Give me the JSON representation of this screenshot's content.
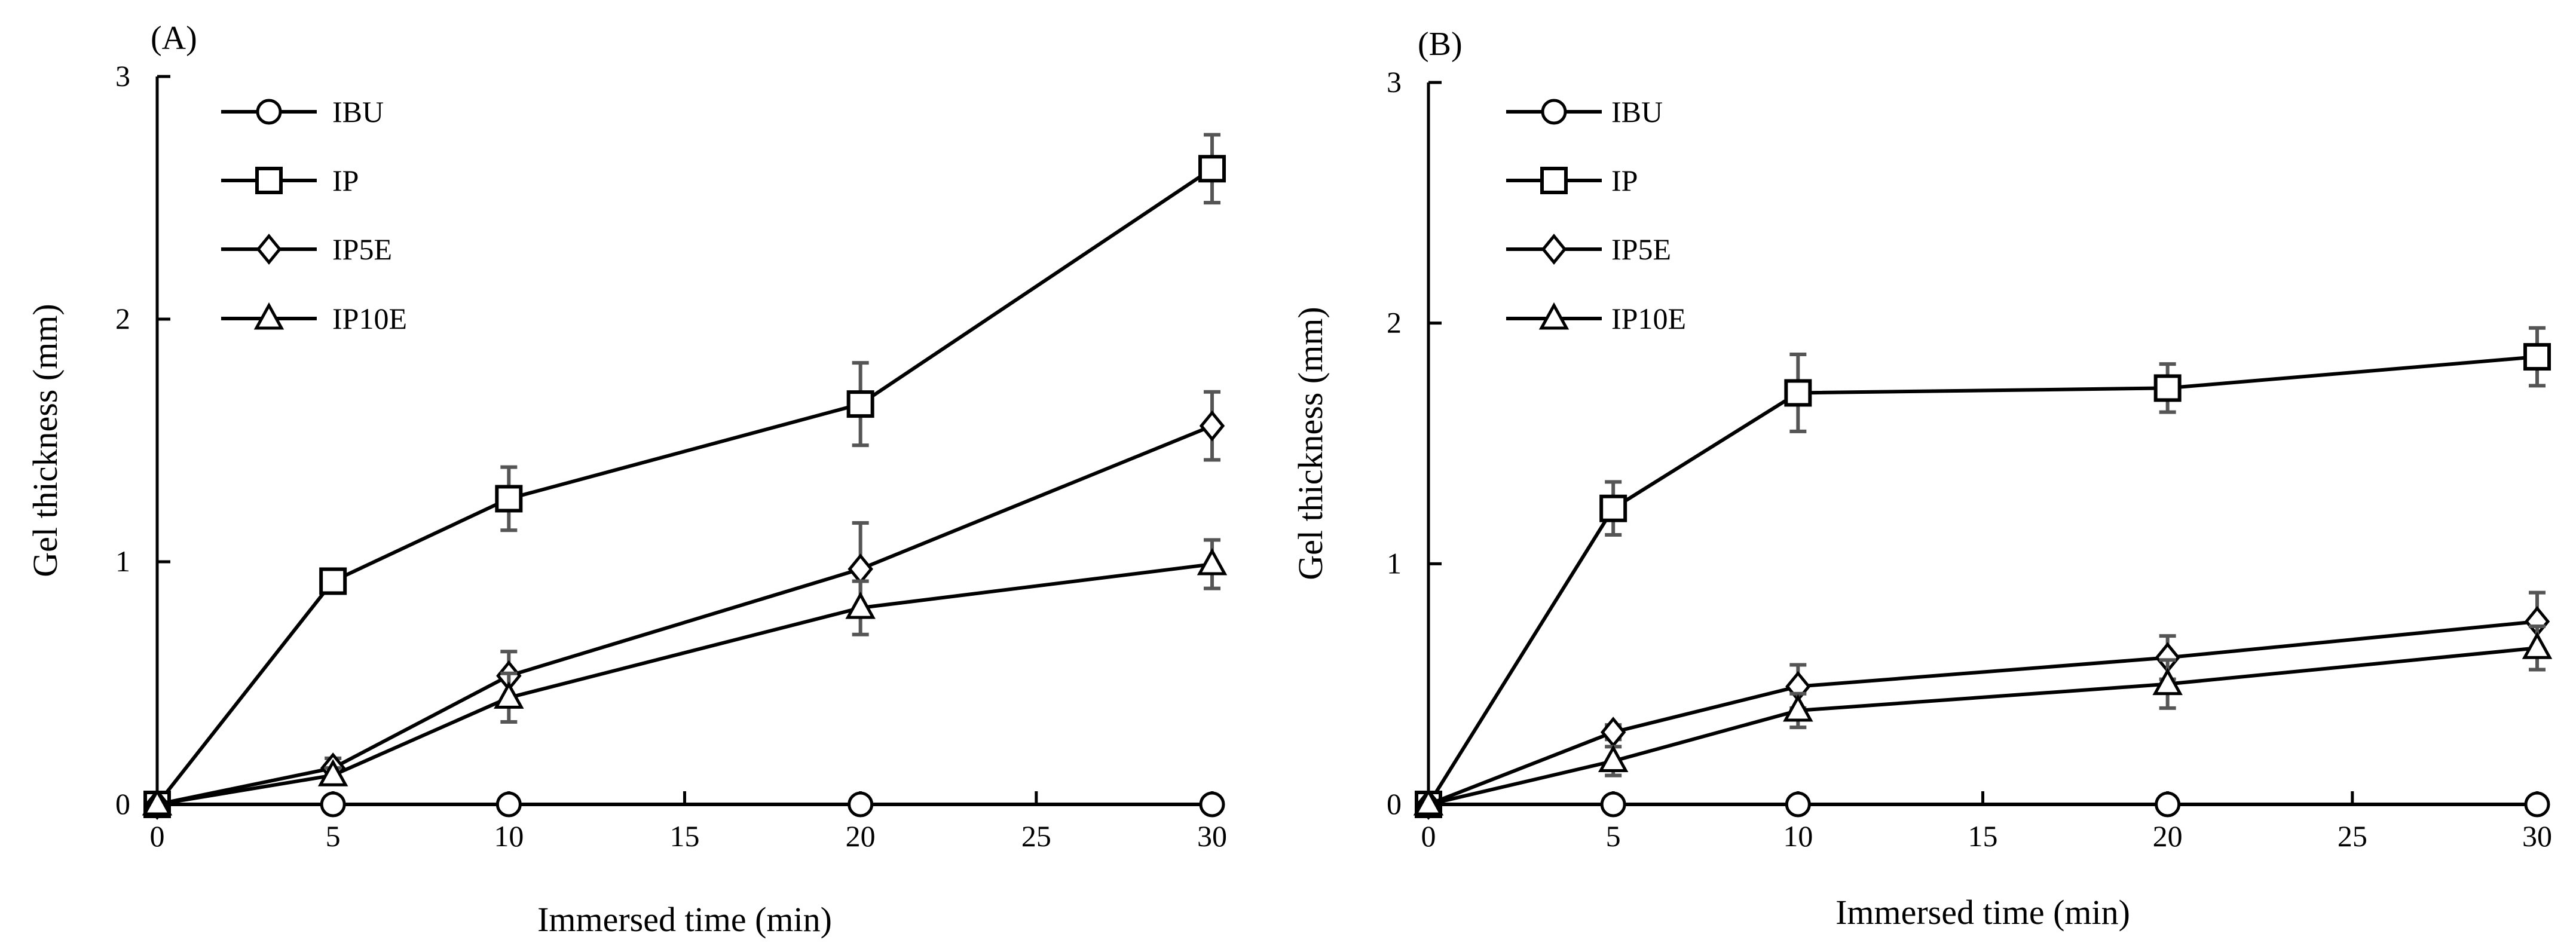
{
  "chart_data": [
    {
      "type": "line",
      "panel_label": "(A)",
      "title": "",
      "xlabel": "Immersed time (min)",
      "ylabel": "Gel thickness (mm)",
      "xlim": [
        0,
        30
      ],
      "ylim": [
        0,
        3
      ],
      "xticks": [
        0,
        5,
        10,
        15,
        20,
        25,
        30
      ],
      "yticks": [
        0,
        1,
        2,
        3
      ],
      "xtick_labels": [
        "0",
        "5",
        "10",
        "15",
        "20",
        "25",
        "30"
      ],
      "ytick_labels": [
        "0",
        "1",
        "2",
        "3"
      ],
      "grid": false,
      "legend_position": "top-left",
      "x": [
        0,
        5,
        10,
        20,
        30
      ],
      "series": [
        {
          "name": "IBU",
          "marker": "circle",
          "values": [
            0,
            0,
            0,
            0,
            0
          ],
          "errors": [
            0,
            0,
            0,
            0,
            0
          ]
        },
        {
          "name": "IP",
          "marker": "square",
          "values": [
            0,
            0.92,
            1.26,
            1.65,
            2.62
          ],
          "errors": [
            0,
            0,
            0.13,
            0.17,
            0.14
          ]
        },
        {
          "name": "IP5E",
          "marker": "diamond",
          "values": [
            0,
            0.15,
            0.53,
            0.97,
            1.56
          ],
          "errors": [
            0,
            0.04,
            0.1,
            0.19,
            0.14
          ]
        },
        {
          "name": "IP10E",
          "marker": "triangle",
          "values": [
            0,
            0.12,
            0.44,
            0.81,
            0.99
          ],
          "errors": [
            0,
            0.03,
            0.1,
            0.11,
            0.1
          ]
        }
      ]
    },
    {
      "type": "line",
      "panel_label": "(B)",
      "title": "",
      "xlabel": "Immersed time (min)",
      "ylabel": "Gel thickness (mm)",
      "xlim": [
        0,
        30
      ],
      "ylim": [
        0,
        3
      ],
      "xticks": [
        0,
        5,
        10,
        15,
        20,
        25,
        30
      ],
      "yticks": [
        0,
        1,
        2,
        3
      ],
      "xtick_labels": [
        "0",
        "5",
        "10",
        "15",
        "20",
        "25",
        "30"
      ],
      "ytick_labels": [
        "0",
        "1",
        "2",
        "3"
      ],
      "grid": false,
      "legend_position": "top-left",
      "x": [
        0,
        5,
        10,
        20,
        30
      ],
      "series": [
        {
          "name": "IBU",
          "marker": "circle",
          "values": [
            0,
            0,
            0,
            0,
            0
          ],
          "errors": [
            0,
            0,
            0,
            0,
            0
          ]
        },
        {
          "name": "IP",
          "marker": "square",
          "values": [
            0,
            1.23,
            1.71,
            1.73,
            1.86
          ],
          "errors": [
            0,
            0.11,
            0.16,
            0.1,
            0.12
          ]
        },
        {
          "name": "IP5E",
          "marker": "diamond",
          "values": [
            0,
            0.3,
            0.49,
            0.61,
            0.76
          ],
          "errors": [
            0,
            0.03,
            0.09,
            0.09,
            0.12
          ]
        },
        {
          "name": "IP10E",
          "marker": "triangle",
          "values": [
            0,
            0.18,
            0.39,
            0.5,
            0.65
          ],
          "errors": [
            0,
            0.06,
            0.07,
            0.1,
            0.09
          ]
        }
      ]
    }
  ],
  "colors": {
    "line": "#000000",
    "marker_fill": "#ffffff",
    "error_bar": "#555555",
    "background": "#ffffff"
  }
}
